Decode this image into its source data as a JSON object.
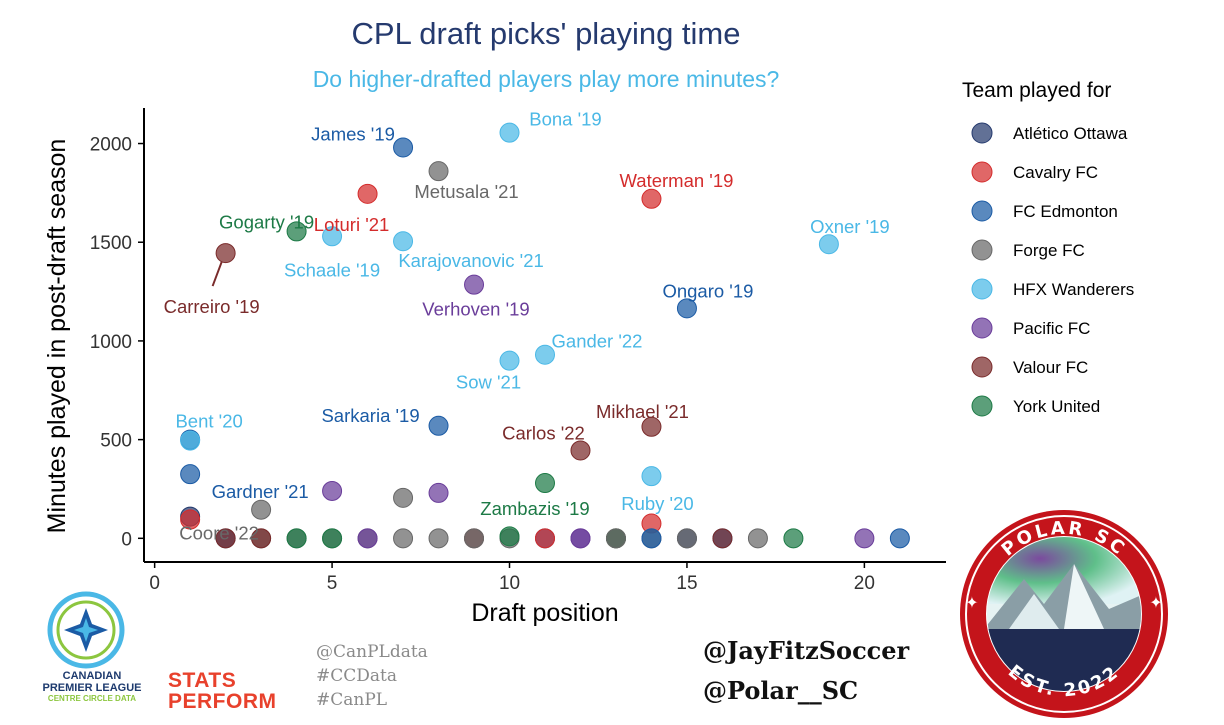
{
  "chart_data": {
    "type": "scatter",
    "title": "CPL draft picks' playing time",
    "subtitle": "Do higher-drafted players play more minutes?",
    "xlabel": "Draft position",
    "ylabel": "Minutes played in post-draft season",
    "xlim": [
      -0.3,
      22.3
    ],
    "ylim": [
      -120,
      2180
    ],
    "x_ticks": [
      0,
      5,
      10,
      15,
      20
    ],
    "y_ticks": [
      0,
      500,
      1000,
      1500,
      2000
    ],
    "grid": false,
    "legend": {
      "title": "Team played for",
      "position": "right",
      "entries": [
        {
          "team": "Atlético Ottawa",
          "color": "#253a6e"
        },
        {
          "team": "Cavalry FC",
          "color": "#d42c2c"
        },
        {
          "team": "FC Edmonton",
          "color": "#1b5ba5"
        },
        {
          "team": "Forge FC",
          "color": "#686868"
        },
        {
          "team": "HFX Wanderers",
          "color": "#4ab8e6"
        },
        {
          "team": "Pacific FC",
          "color": "#6a3d9a"
        },
        {
          "team": "Valour FC",
          "color": "#7a2b2b"
        },
        {
          "team": "York United",
          "color": "#1d7a46"
        }
      ]
    },
    "labeled_points": [
      {
        "label": "James '19",
        "x": 7,
        "y": 1980,
        "team": "FC Edmonton"
      },
      {
        "label": "Bona '19",
        "x": 10,
        "y": 2055,
        "team": "HFX Wanderers"
      },
      {
        "label": "Metusala '21",
        "x": 8,
        "y": 1860,
        "team": "Forge FC"
      },
      {
        "label": "Waterman '19",
        "x": 14,
        "y": 1720,
        "team": "Cavalry FC"
      },
      {
        "label": "Loturi '21",
        "x": 6,
        "y": 1745,
        "team": "Cavalry FC"
      },
      {
        "label": "Gogarty '19",
        "x": 4,
        "y": 1555,
        "team": "York United"
      },
      {
        "label": "Schaale '19",
        "x": 5,
        "y": 1530,
        "team": "HFX Wanderers"
      },
      {
        "label": "Karajovanovic '21",
        "x": 7,
        "y": 1505,
        "team": "HFX Wanderers"
      },
      {
        "label": "Oxner '19",
        "x": 19,
        "y": 1490,
        "team": "HFX Wanderers"
      },
      {
        "label": "Carreiro '19",
        "x": 2,
        "y": 1445,
        "team": "Valour FC"
      },
      {
        "label": "Verhoven '19",
        "x": 9,
        "y": 1285,
        "team": "Pacific FC"
      },
      {
        "label": "Ongaro '19",
        "x": 15,
        "y": 1165,
        "team": "FC Edmonton"
      },
      {
        "label": "Gander '22",
        "x": 11,
        "y": 930,
        "team": "HFX Wanderers"
      },
      {
        "label": "Sow '21",
        "x": 10,
        "y": 900,
        "team": "HFX Wanderers"
      },
      {
        "label": "Mikhael '21",
        "x": 14,
        "y": 565,
        "team": "Valour FC"
      },
      {
        "label": "Sarkaria '19",
        "x": 8,
        "y": 570,
        "team": "FC Edmonton"
      },
      {
        "label": "Bent '20",
        "x": 1,
        "y": 495,
        "team": "HFX Wanderers"
      },
      {
        "label": "Carlos '22",
        "x": 12,
        "y": 445,
        "team": "Valour FC"
      },
      {
        "label": "Gardner '21",
        "x": 1,
        "y": 325,
        "team": "FC Edmonton"
      },
      {
        "label": "Ruby '20",
        "x": 14,
        "y": 315,
        "team": "HFX Wanderers"
      },
      {
        "label": "Zambazis '19",
        "x": 11,
        "y": 280,
        "team": "York United"
      },
      {
        "label": "Coore '22",
        "x": 3,
        "y": 145,
        "team": "Forge FC"
      }
    ],
    "other_points": [
      {
        "x": 1,
        "y": 500,
        "team": "FC Edmonton"
      },
      {
        "x": 5,
        "y": 240,
        "team": "Pacific FC"
      },
      {
        "x": 7,
        "y": 205,
        "team": "Forge FC"
      },
      {
        "x": 8,
        "y": 230,
        "team": "Pacific FC"
      },
      {
        "x": 14,
        "y": 75,
        "team": "Cavalry FC"
      },
      {
        "x": 1,
        "y": 110,
        "team": "Atlético Ottawa"
      },
      {
        "x": 1,
        "y": 95,
        "team": "Cavalry FC"
      },
      {
        "x": 2,
        "y": 0,
        "team": "Atlético Ottawa"
      },
      {
        "x": 2,
        "y": 0,
        "team": "Valour FC"
      },
      {
        "x": 3,
        "y": 0,
        "team": "Forge FC"
      },
      {
        "x": 3,
        "y": 0,
        "team": "Valour FC"
      },
      {
        "x": 4,
        "y": 0,
        "team": "Forge FC"
      },
      {
        "x": 4,
        "y": 0,
        "team": "York United"
      },
      {
        "x": 5,
        "y": 0,
        "team": "Forge FC"
      },
      {
        "x": 5,
        "y": 0,
        "team": "York United"
      },
      {
        "x": 6,
        "y": 0,
        "team": "Forge FC"
      },
      {
        "x": 6,
        "y": 0,
        "team": "Pacific FC"
      },
      {
        "x": 7,
        "y": 0,
        "team": "Forge FC"
      },
      {
        "x": 8,
        "y": 0,
        "team": "Forge FC"
      },
      {
        "x": 9,
        "y": 0,
        "team": "Valour FC"
      },
      {
        "x": 9,
        "y": 0,
        "team": "Forge FC"
      },
      {
        "x": 10,
        "y": 0,
        "team": "Forge FC"
      },
      {
        "x": 10,
        "y": 10,
        "team": "York United"
      },
      {
        "x": 11,
        "y": 0,
        "team": "FC Edmonton"
      },
      {
        "x": 11,
        "y": 0,
        "team": "Cavalry FC"
      },
      {
        "x": 12,
        "y": 0,
        "team": "Pacific FC"
      },
      {
        "x": 12,
        "y": 0,
        "team": "Pacific FC"
      },
      {
        "x": 13,
        "y": 0,
        "team": "Valour FC"
      },
      {
        "x": 13,
        "y": 0,
        "team": "York United"
      },
      {
        "x": 13,
        "y": 0,
        "team": "Forge FC"
      },
      {
        "x": 14,
        "y": 0,
        "team": "Forge FC"
      },
      {
        "x": 14,
        "y": 0,
        "team": "FC Edmonton"
      },
      {
        "x": 15,
        "y": 0,
        "team": "Atlético Ottawa"
      },
      {
        "x": 15,
        "y": 0,
        "team": "Forge FC"
      },
      {
        "x": 16,
        "y": 0,
        "team": "FC Edmonton"
      },
      {
        "x": 16,
        "y": 0,
        "team": "Valour FC"
      },
      {
        "x": 17,
        "y": 0,
        "team": "Forge FC"
      },
      {
        "x": 18,
        "y": 0,
        "team": "York United"
      },
      {
        "x": 20,
        "y": 0,
        "team": "Pacific FC"
      },
      {
        "x": 21,
        "y": 0,
        "team": "FC Edmonton"
      }
    ]
  },
  "credits": {
    "lines": [
      "@CanPLdata",
      "#CCData",
      "#CanPL"
    ],
    "handles": [
      "@JayFitzSoccer",
      "@Polar__SC"
    ]
  },
  "logos": {
    "cpl": {
      "line1": "CANADIAN",
      "line2": "PREMIER LEAGUE",
      "line3": "CENTRE CIRCLE DATA"
    },
    "stats_perform": {
      "line1": "STATS",
      "line2": "PERFORM"
    },
    "polar": {
      "top": "POLAR SC",
      "bottom": "EST. 2022"
    }
  }
}
